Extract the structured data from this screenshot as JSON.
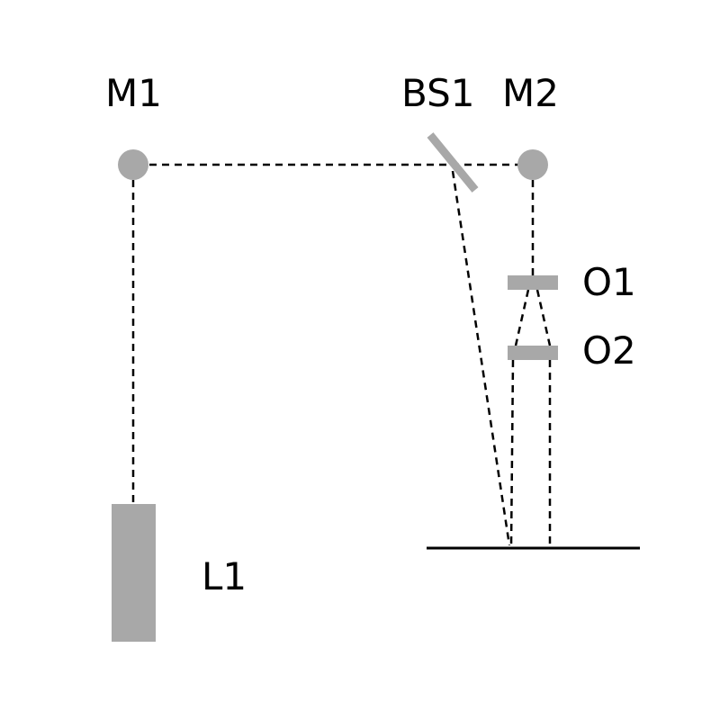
{
  "labels": {
    "m1": "M1",
    "bs1": "BS1",
    "m2": "M2",
    "o1": "O1",
    "o2": "O2",
    "l1": "L1"
  },
  "colors": {
    "component": "#a8a8a8",
    "beam": "#000000",
    "surface": "#000000",
    "background": "#ffffff"
  }
}
